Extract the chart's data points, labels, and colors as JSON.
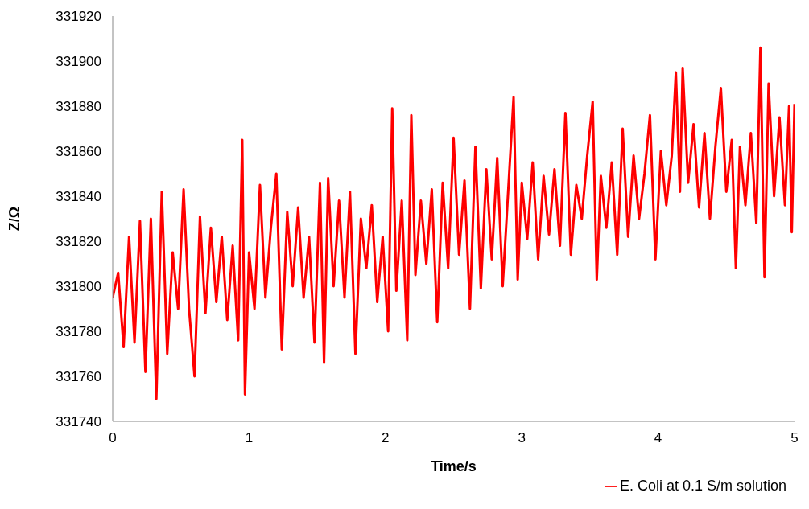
{
  "chart_data": {
    "type": "line",
    "xlabel": "Time/s",
    "ylabel": "Z/Ω",
    "xlim": [
      0,
      5
    ],
    "xticks": [
      0,
      1,
      2,
      3,
      4,
      5
    ],
    "ylim": [
      331740,
      331920
    ],
    "yticks": [
      331740,
      331760,
      331780,
      331800,
      331820,
      331840,
      331860,
      331880,
      331900,
      331920
    ],
    "grid": false,
    "legend": "bottom right",
    "marker": "none",
    "line_style": "solid",
    "x": [
      0,
      0.04,
      0.08,
      0.12,
      0.16,
      0.2,
      0.24,
      0.28,
      0.32,
      0.36,
      0.4,
      0.44,
      0.48,
      0.52,
      0.56,
      0.6,
      0.64,
      0.68,
      0.72,
      0.76,
      0.8,
      0.84,
      0.88,
      0.92,
      0.95,
      0.97,
      1,
      1.04,
      1.08,
      1.12,
      1.16,
      1.2,
      1.24,
      1.28,
      1.32,
      1.36,
      1.4,
      1.44,
      1.48,
      1.52,
      1.55,
      1.58,
      1.62,
      1.66,
      1.7,
      1.74,
      1.78,
      1.82,
      1.86,
      1.9,
      1.94,
      1.98,
      2.02,
      2.05,
      2.08,
      2.12,
      2.16,
      2.19,
      2.22,
      2.26,
      2.3,
      2.34,
      2.38,
      2.42,
      2.46,
      2.5,
      2.54,
      2.58,
      2.62,
      2.66,
      2.7,
      2.74,
      2.78,
      2.82,
      2.86,
      2.9,
      2.94,
      2.97,
      3,
      3.04,
      3.08,
      3.12,
      3.16,
      3.2,
      3.24,
      3.28,
      3.32,
      3.36,
      3.4,
      3.44,
      3.48,
      3.52,
      3.55,
      3.58,
      3.62,
      3.66,
      3.7,
      3.74,
      3.78,
      3.82,
      3.86,
      3.9,
      3.94,
      3.98,
      4.02,
      4.06,
      4.1,
      4.13,
      4.16,
      4.18,
      4.22,
      4.26,
      4.3,
      4.34,
      4.38,
      4.42,
      4.46,
      4.5,
      4.54,
      4.57,
      4.6,
      4.64,
      4.68,
      4.72,
      4.75,
      4.78,
      4.81,
      4.85,
      4.89,
      4.93,
      4.96,
      4.98,
      5
    ],
    "series": [
      {
        "name": "E. Coli at 0.1 S/m solution",
        "color": "#ff0000",
        "values": [
          331795,
          331806,
          331773,
          331822,
          331775,
          331829,
          331762,
          331830,
          331750,
          331842,
          331770,
          331815,
          331790,
          331843,
          331790,
          331760,
          331831,
          331788,
          331826,
          331793,
          331822,
          331785,
          331818,
          331776,
          331865,
          331752,
          331815,
          331790,
          331845,
          331795,
          331826,
          331850,
          331772,
          331833,
          331800,
          331835,
          331795,
          331822,
          331775,
          331846,
          331766,
          331848,
          331800,
          331838,
          331795,
          331842,
          331770,
          331830,
          331808,
          331836,
          331793,
          331822,
          331780,
          331879,
          331798,
          331838,
          331776,
          331876,
          331805,
          331838,
          331810,
          331843,
          331784,
          331846,
          331808,
          331866,
          331814,
          331847,
          331790,
          331862,
          331799,
          331852,
          331812,
          331857,
          331800,
          331842,
          331884,
          331803,
          331846,
          331821,
          331855,
          331812,
          331849,
          331823,
          331852,
          331818,
          331877,
          331814,
          331845,
          331830,
          331858,
          331882,
          331803,
          331849,
          331826,
          331855,
          331814,
          331870,
          331822,
          331858,
          331830,
          331850,
          331876,
          331812,
          331860,
          331836,
          331858,
          331895,
          331842,
          331897,
          331846,
          331872,
          331835,
          331868,
          331830,
          331862,
          331888,
          331842,
          331865,
          331808,
          331862,
          331836,
          331868,
          331828,
          331906,
          331804,
          331890,
          331840,
          331875,
          331836,
          331880,
          331824,
          331881
        ]
      }
    ]
  }
}
